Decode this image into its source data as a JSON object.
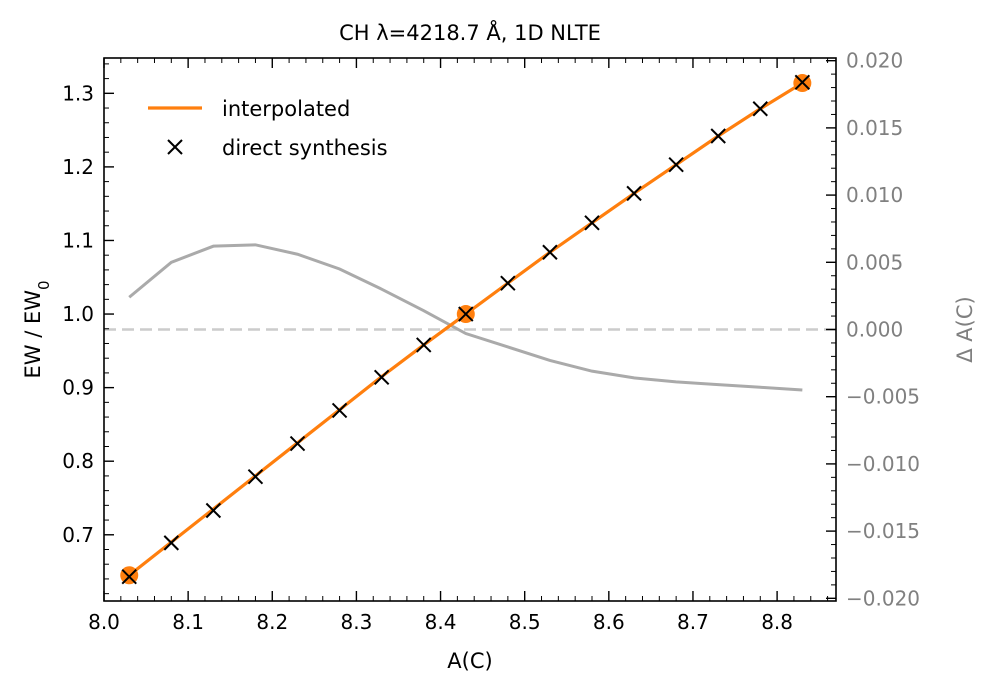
{
  "chart_data": {
    "type": "line",
    "title": "CH λ=4218.7 Å, 1D NLTE",
    "xlabel": "A(C)",
    "ylabel": "EW / EW",
    "ylabel_subscript": "0",
    "y2label": "Δ A(C)",
    "xlim": [
      8.0,
      8.87
    ],
    "ylim": [
      0.61,
      1.348
    ],
    "y2lim": [
      -0.0202,
      0.0202
    ],
    "xticks": [
      8.0,
      8.1,
      8.2,
      8.3,
      8.4,
      8.5,
      8.6,
      8.7,
      8.8
    ],
    "xtick_labels": [
      "8.0",
      "8.1",
      "8.2",
      "8.3",
      "8.4",
      "8.5",
      "8.6",
      "8.7",
      "8.8"
    ],
    "yticks": [
      0.7,
      0.8,
      0.9,
      1.0,
      1.1,
      1.2,
      1.3
    ],
    "ytick_labels": [
      "0.7",
      "0.8",
      "0.9",
      "1.0",
      "1.1",
      "1.2",
      "1.3"
    ],
    "y2ticks": [
      -0.02,
      -0.015,
      -0.01,
      -0.005,
      0.0,
      0.005,
      0.01,
      0.015,
      0.02
    ],
    "y2tick_labels": [
      "−0.020",
      "−0.015",
      "−0.010",
      "−0.005",
      "0.000",
      "0.005",
      "0.010",
      "0.015",
      "0.020"
    ],
    "legend_position": "top-left",
    "legend": [
      "interpolated",
      "direct synthesis"
    ],
    "colors": {
      "interpolated": "#ff7f0e",
      "direct": "#000000",
      "residual": "#aaaaaa",
      "zero_line": "#cccccc",
      "secondary_axis": "#808080"
    },
    "series": [
      {
        "name": "interpolated",
        "axis": "left",
        "x": [
          8.03,
          8.08,
          8.13,
          8.18,
          8.23,
          8.28,
          8.33,
          8.38,
          8.43,
          8.48,
          8.53,
          8.58,
          8.63,
          8.68,
          8.73,
          8.78,
          8.83
        ],
        "y": [
          0.645,
          0.69,
          0.735,
          0.78,
          0.825,
          0.87,
          0.915,
          0.958,
          1.0,
          1.042,
          1.084,
          1.124,
          1.164,
          1.203,
          1.242,
          1.279,
          1.314
        ]
      },
      {
        "name": "interpolation nodes",
        "axis": "left",
        "x": [
          8.03,
          8.43,
          8.83
        ],
        "y": [
          0.645,
          1.0,
          1.314
        ]
      },
      {
        "name": "direct synthesis",
        "axis": "left",
        "x": [
          8.03,
          8.08,
          8.13,
          8.18,
          8.23,
          8.28,
          8.33,
          8.38,
          8.43,
          8.48,
          8.53,
          8.58,
          8.63,
          8.68,
          8.73,
          8.78,
          8.83
        ],
        "y": [
          0.643,
          0.689,
          0.733,
          0.779,
          0.824,
          0.869,
          0.914,
          0.958,
          1.0,
          1.042,
          1.084,
          1.124,
          1.164,
          1.203,
          1.242,
          1.279,
          1.315
        ]
      },
      {
        "name": "Δ A(C)",
        "axis": "right",
        "x": [
          8.03,
          8.08,
          8.13,
          8.18,
          8.23,
          8.28,
          8.33,
          8.38,
          8.43,
          8.48,
          8.53,
          8.58,
          8.63,
          8.68,
          8.73,
          8.78,
          8.83
        ],
        "y": [
          0.0024,
          0.005,
          0.0062,
          0.0063,
          0.0056,
          0.0045,
          0.003,
          0.0014,
          -0.0003,
          -0.0013,
          -0.0023,
          -0.0031,
          -0.0036,
          -0.0039,
          -0.0041,
          -0.0043,
          -0.0045
        ]
      }
    ]
  }
}
